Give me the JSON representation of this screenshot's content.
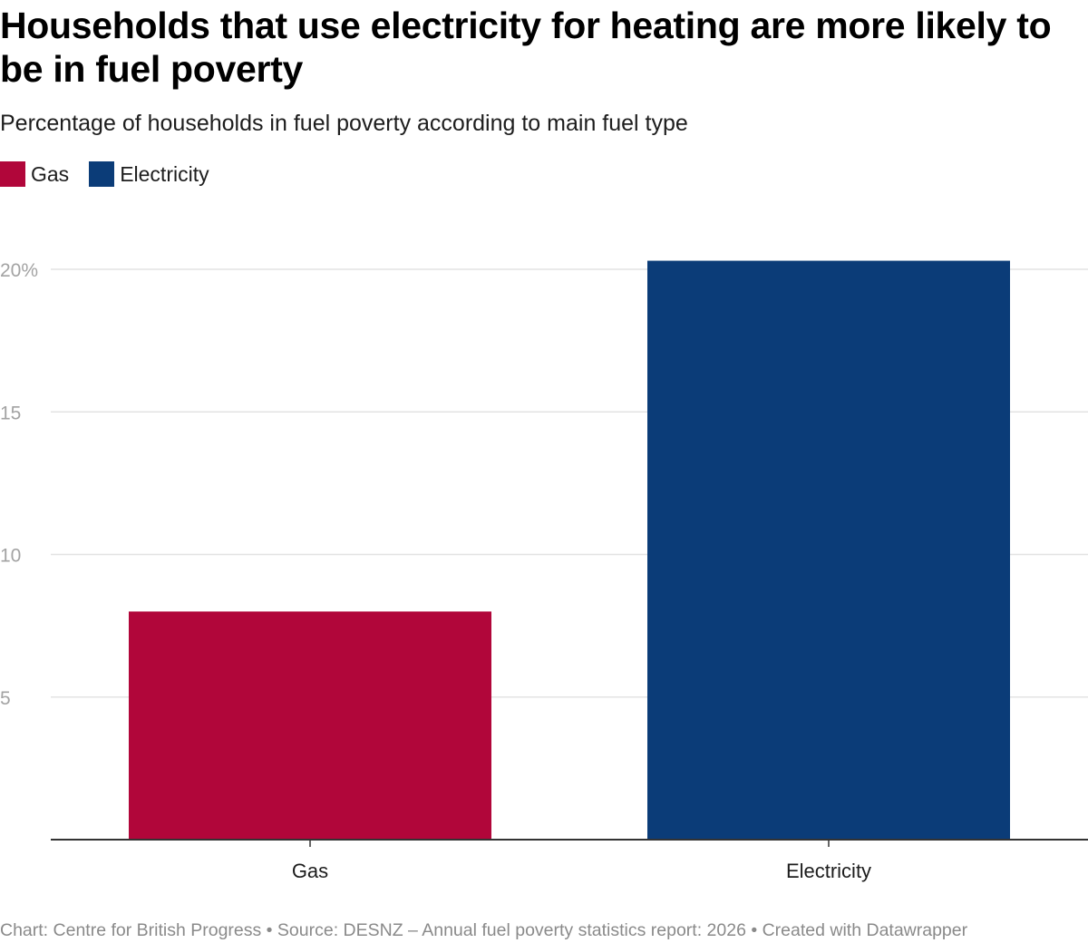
{
  "title": "Households that use electricity for heating are more likely to be in fuel poverty",
  "subtitle": "Percentage of households in fuel poverty according to main fuel type",
  "legend": [
    {
      "label": "Gas",
      "color": "#b1063a"
    },
    {
      "label": "Electricity",
      "color": "#0b3c78"
    }
  ],
  "chart_data": {
    "type": "bar",
    "categories": [
      "Gas",
      "Electricity"
    ],
    "values": [
      8.0,
      20.3
    ],
    "colors": [
      "#b1063a",
      "#0b3c78"
    ],
    "title": "Households that use electricity for heating are more likely to be in fuel poverty",
    "subtitle": "Percentage of households in fuel poverty according to main fuel type",
    "xlabel": "",
    "ylabel": "",
    "ylim": [
      0,
      20
    ],
    "y_ticks": [
      5,
      10,
      15,
      20
    ],
    "y_tick_labels": [
      "5",
      "10",
      "15",
      "20%"
    ],
    "grid": true,
    "legend_position": "top-left"
  },
  "footer": {
    "text": "Chart: Centre for British Progress • Source: DESNZ – Annual fuel poverty statistics report: 2026 • Created with Datawrapper"
  }
}
